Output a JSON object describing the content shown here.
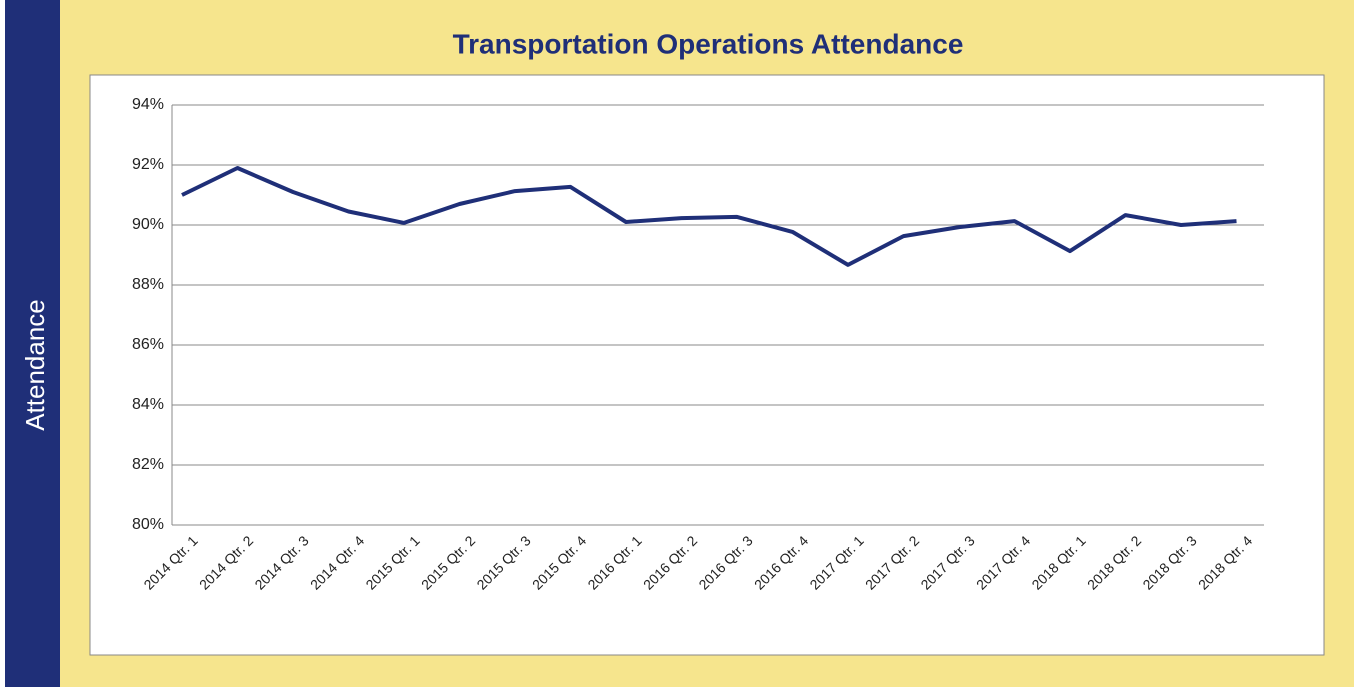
{
  "chart_data": {
    "type": "line",
    "title": "Transportation Operations Attendance",
    "y_label": "Attendance",
    "categories": [
      "2014 Qtr. 1",
      "2014 Qtr. 2",
      "2014 Qtr. 3",
      "2014 Qtr. 4",
      "2015 Qtr. 1",
      "2015 Qtr. 2",
      "2015 Qtr. 3",
      "2015 Qtr. 4",
      "2016 Qtr. 1",
      "2016 Qtr. 2",
      "2016 Qtr. 3",
      "2016 Qtr. 4",
      "2017 Qtr. 1",
      "2017 Qtr. 2",
      "2017 Qtr. 3",
      "2017 Qtr. 4",
      "2018 Qtr. 1",
      "2018 Qtr. 2",
      "2018 Qtr. 3",
      "2018 Qtr. 4"
    ],
    "values": [
      91.0,
      91.9,
      91.1,
      90.45,
      90.07,
      90.7,
      91.13,
      91.27,
      90.1,
      90.23,
      90.27,
      89.77,
      88.67,
      89.63,
      89.93,
      90.13,
      89.13,
      90.33,
      90.0,
      90.13
    ],
    "color": "#1f2f78",
    "ylim": [
      80,
      94
    ],
    "yticks": [
      {
        "value": 80,
        "label": "80%"
      },
      {
        "value": 82,
        "label": "82%"
      },
      {
        "value": 84,
        "label": "84%"
      },
      {
        "value": 86,
        "label": "86%"
      },
      {
        "value": 88,
        "label": "88%"
      },
      {
        "value": 90,
        "label": "90%"
      },
      {
        "value": 92,
        "label": "92%"
      },
      {
        "value": 94,
        "label": "94%"
      }
    ],
    "grid": true
  }
}
